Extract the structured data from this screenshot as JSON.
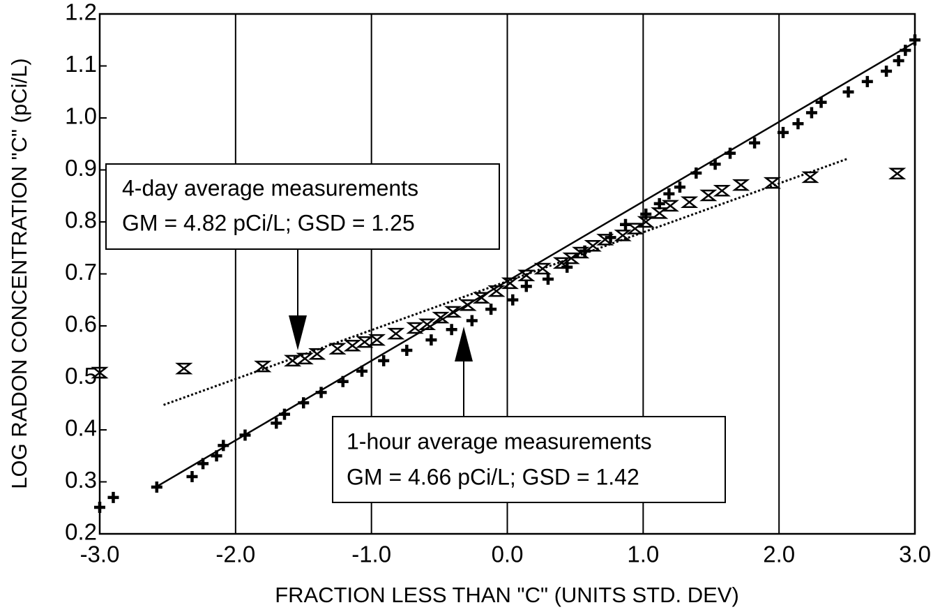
{
  "chart_data": {
    "type": "scatter",
    "xlabel": "FRACTION LESS THAN \"C\" (UNITS STD. DEV)",
    "ylabel": "LOG RADON CONCENTRATION \"C\" (pCi/L)",
    "xlim": [
      -3,
      3
    ],
    "ylim": [
      0.2,
      1.2
    ],
    "xticks": [
      {
        "value": -3,
        "label": "-3.0"
      },
      {
        "value": -2,
        "label": "-2.0"
      },
      {
        "value": -1,
        "label": "-1.0"
      },
      {
        "value": 0,
        "label": "0.0"
      },
      {
        "value": 1,
        "label": "1.0"
      },
      {
        "value": 2,
        "label": "2.0"
      },
      {
        "value": 3,
        "label": "3.0"
      }
    ],
    "yticks": [
      0.2,
      0.3,
      0.4,
      0.5,
      0.6,
      0.7,
      0.8,
      0.9,
      {
        "value": 1,
        "label": "1.0"
      },
      1.1,
      1.2
    ],
    "grid": "x",
    "series": [
      {
        "marker": "plus",
        "color": "#000000",
        "fit_dashed": false,
        "fit_x": [
          -2.58,
          2.99
        ],
        "fit_y": [
          0.291,
          1.144
        ],
        "x": [
          -3.0,
          -2.9,
          -2.58,
          -2.32,
          -2.24,
          -2.14,
          -2.09,
          -1.93,
          -1.7,
          -1.64,
          -1.5,
          -1.37,
          -1.21,
          -1.07,
          -0.91,
          -0.74,
          -0.56,
          -0.41,
          -0.26,
          -0.12,
          0.04,
          0.14,
          0.3,
          0.44,
          0.57,
          0.76,
          0.87,
          1.02,
          1.12,
          1.19,
          1.27,
          1.39,
          1.53,
          1.64,
          1.82,
          2.03,
          2.14,
          2.24,
          2.31,
          2.51,
          2.65,
          2.79,
          2.88,
          2.93,
          3.0
        ],
        "values": [
          0.251,
          0.27,
          0.29,
          0.31,
          0.335,
          0.35,
          0.37,
          0.39,
          0.413,
          0.43,
          0.452,
          0.472,
          0.493,
          0.513,
          0.533,
          0.553,
          0.573,
          0.593,
          0.61,
          0.632,
          0.65,
          0.676,
          0.69,
          0.713,
          0.744,
          0.77,
          0.795,
          0.815,
          0.835,
          0.854,
          0.867,
          0.894,
          0.911,
          0.932,
          0.952,
          0.972,
          0.989,
          1.01,
          1.03,
          1.05,
          1.07,
          1.09,
          1.11,
          1.13,
          1.15
        ]
      },
      {
        "marker": "hourglass",
        "color": "#000000",
        "fit_dashed": true,
        "fit_x": [
          -2.53,
          2.51
        ],
        "fit_y": [
          0.448,
          0.922
        ],
        "x": [
          -3.0,
          -2.38,
          -1.8,
          -1.58,
          -1.49,
          -1.4,
          -1.25,
          -1.14,
          -1.05,
          -0.96,
          -0.82,
          -0.68,
          -0.59,
          -0.49,
          -0.4,
          -0.29,
          -0.19,
          -0.08,
          0.02,
          0.14,
          0.26,
          0.4,
          0.47,
          0.54,
          0.63,
          0.72,
          0.85,
          0.94,
          1.02,
          1.12,
          1.2,
          1.34,
          1.48,
          1.58,
          1.72,
          1.95,
          2.23,
          2.87
        ],
        "values": [
          0.51,
          0.518,
          0.522,
          0.533,
          0.537,
          0.546,
          0.556,
          0.562,
          0.569,
          0.573,
          0.585,
          0.596,
          0.603,
          0.616,
          0.627,
          0.64,
          0.654,
          0.667,
          0.682,
          0.697,
          0.71,
          0.721,
          0.73,
          0.741,
          0.754,
          0.766,
          0.774,
          0.787,
          0.8,
          0.817,
          0.831,
          0.838,
          0.851,
          0.86,
          0.871,
          0.875,
          0.886,
          0.893
        ]
      }
    ],
    "annotations": [
      {
        "lines": [
          "4-day average measurements",
          "GM = 4.82 pCi/L; GSD = 1.25"
        ]
      },
      {
        "lines": [
          "1-hour average measurements",
          "GM = 4.66 pCi/L; GSD = 1.42"
        ]
      }
    ]
  }
}
